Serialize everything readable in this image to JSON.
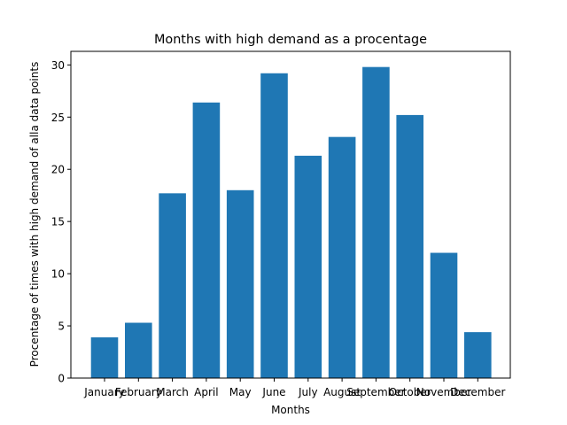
{
  "chart_data": {
    "type": "bar",
    "title": "Months with high demand as a procentage",
    "xlabel": "Months",
    "ylabel": "Procentage of times with high demand of alla data points",
    "categories": [
      "January",
      "February",
      "March",
      "April",
      "May",
      "June",
      "July",
      "August",
      "September",
      "October",
      "November",
      "December"
    ],
    "values": [
      3.9,
      5.3,
      17.7,
      26.4,
      18.0,
      29.2,
      21.3,
      23.1,
      29.8,
      25.2,
      12.0,
      4.4
    ],
    "ylim": [
      0,
      31.3
    ],
    "yticks": [
      0,
      5,
      10,
      15,
      20,
      25,
      30
    ],
    "grid": false,
    "bar_color": "#1f77b4"
  }
}
